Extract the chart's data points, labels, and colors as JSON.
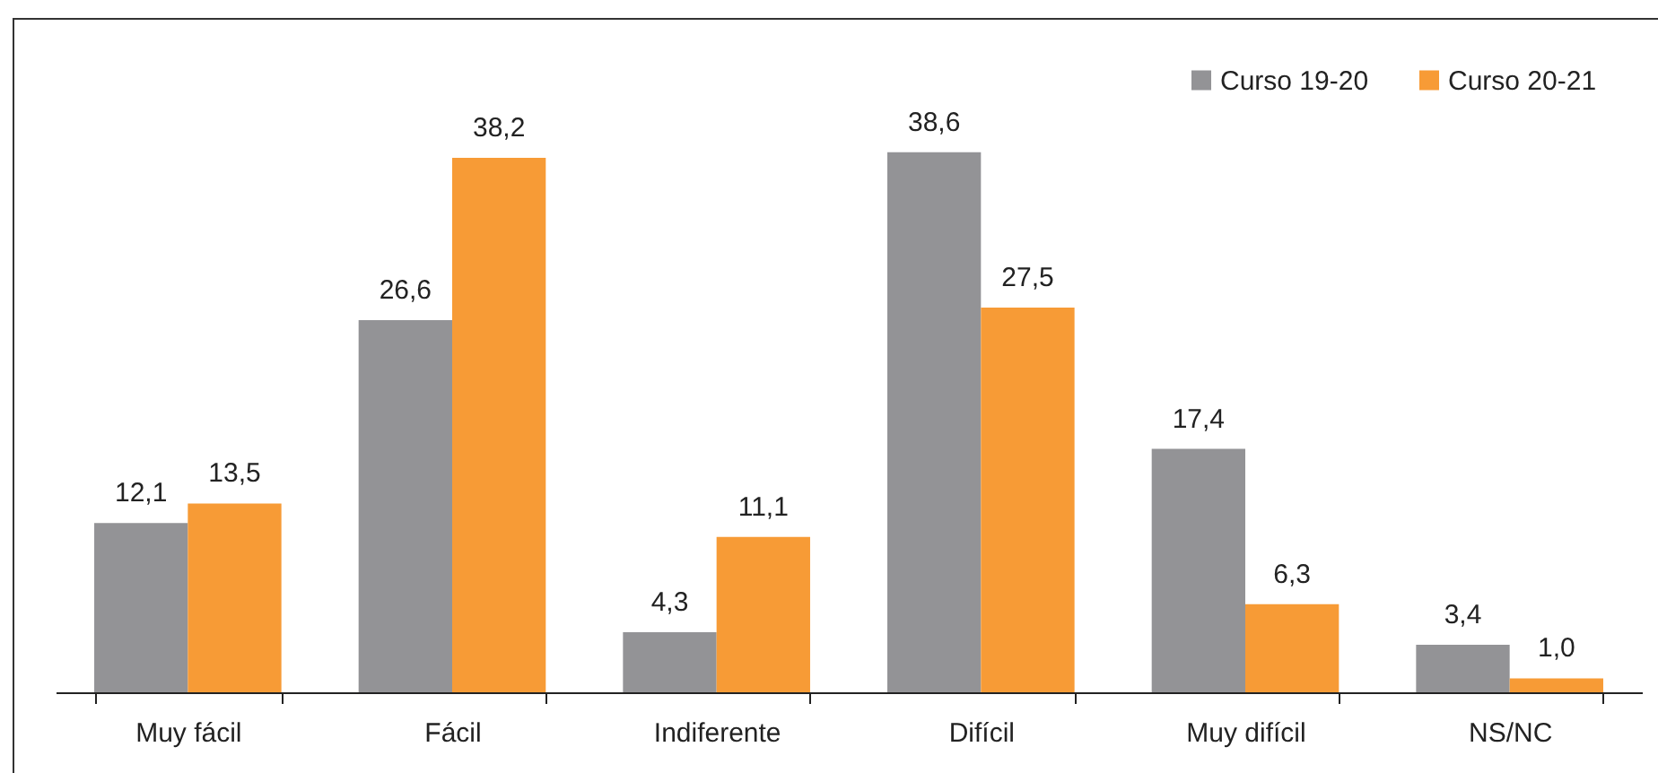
{
  "chart_data": {
    "type": "bar",
    "categories": [
      "Muy fácil",
      "Fácil",
      "Indiferente",
      "Difícil",
      "Muy difícil",
      "NS/NC"
    ],
    "series": [
      {
        "name": "Curso 19-20",
        "color": "#939396",
        "values": [
          12.1,
          26.6,
          4.3,
          38.6,
          17.4,
          3.4
        ],
        "value_labels": [
          "12,1",
          "26,6",
          "4,3",
          "38,6",
          "17,4",
          "3,4"
        ]
      },
      {
        "name": "Curso 20-21",
        "color": "#f79b36",
        "values": [
          13.5,
          38.2,
          11.1,
          27.5,
          6.3,
          1.0
        ],
        "value_labels": [
          "13,5",
          "38,2",
          "11,1",
          "27,5",
          "6,3",
          "1,0"
        ]
      }
    ],
    "legend": "top right"
  }
}
